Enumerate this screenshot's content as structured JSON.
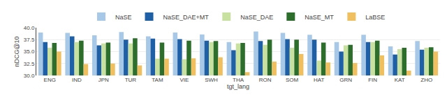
{
  "chart_data": {
    "type": "bar",
    "categories": [
      "ENG",
      "IND",
      "JPN",
      "TUR",
      "TAM",
      "VIE",
      "SWH",
      "THA",
      "RON",
      "SOM",
      "HAT",
      "GRN",
      "FIN",
      "KAT",
      "ZHO"
    ],
    "series": [
      {
        "name": "NaSE",
        "color": "#a8c8e8",
        "values": [
          39.0,
          38.9,
          38.4,
          39.1,
          38.2,
          39.0,
          38.6,
          37.0,
          39.2,
          38.9,
          38.5,
          37.0,
          38.5,
          36.1,
          37.2
        ]
      },
      {
        "name": "NaSE_DAE+MT",
        "color": "#1f5fa6",
        "values": [
          37.0,
          38.2,
          36.3,
          37.5,
          37.7,
          37.6,
          37.3,
          35.3,
          37.2,
          37.6,
          37.5,
          35.0,
          37.0,
          34.4,
          35.4
        ]
      },
      {
        "name": "NaSE_DAE",
        "color": "#c8e0a0",
        "values": [
          35.8,
          37.0,
          36.7,
          36.7,
          33.5,
          33.4,
          37.0,
          36.7,
          36.4,
          35.8,
          33.1,
          36.3,
          37.0,
          35.5,
          35.8
        ]
      },
      {
        "name": "NaSE_MT",
        "color": "#2d6e2d",
        "values": [
          36.8,
          37.3,
          36.9,
          37.8,
          36.9,
          37.3,
          37.2,
          36.8,
          37.5,
          37.5,
          36.9,
          36.4,
          37.3,
          35.8,
          35.9
        ]
      },
      {
        "name": "LaBSE",
        "color": "#f0c060",
        "values": [
          35.0,
          32.4,
          32.5,
          32.1,
          33.5,
          33.6,
          33.8,
          30.7,
          32.9,
          34.5,
          32.7,
          32.6,
          34.2,
          31.0,
          35.0
        ]
      }
    ],
    "xlabel": "tgt_lang",
    "ylabel": "nDCG@10",
    "ylim": [
      30.0,
      40.0
    ],
    "yticks": [
      {
        "value": 30.0,
        "label": "30.0"
      },
      {
        "value": 32.5,
        "label": "32.5"
      },
      {
        "value": 35.0,
        "label": "35.0"
      },
      {
        "value": 37.5,
        "label": "37.5"
      },
      {
        "value": 40.0,
        "label": "40.0"
      }
    ],
    "grid": true,
    "legend": "top"
  }
}
